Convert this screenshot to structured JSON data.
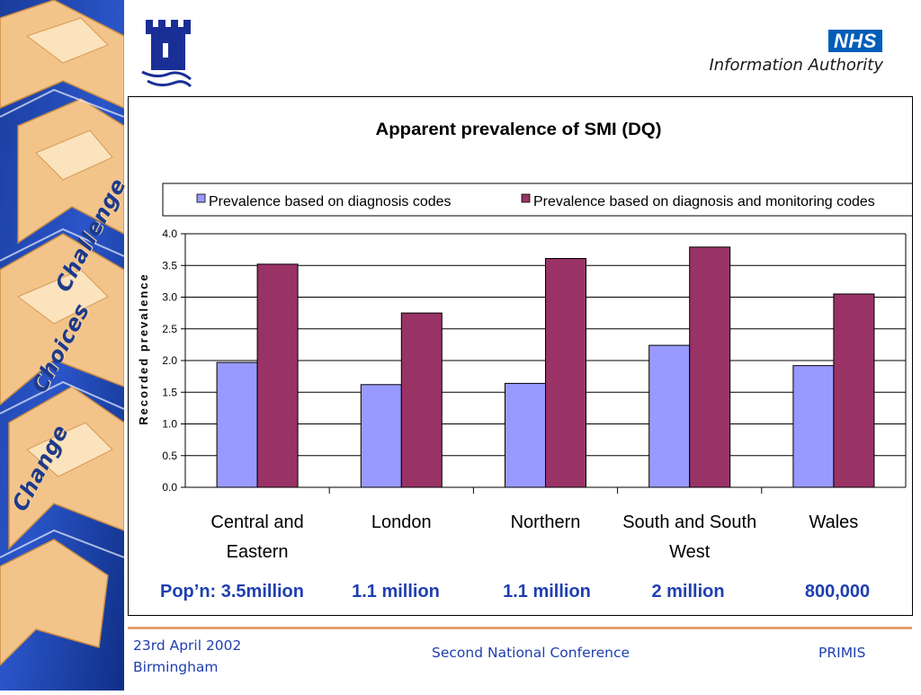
{
  "header": {
    "nhs_badge": "NHS",
    "org_name": "Information Authority"
  },
  "sidebar": {
    "words": [
      "Challenge",
      "Choices",
      "Change"
    ]
  },
  "chart_data": {
    "type": "bar",
    "title": "Apparent prevalence of SMI (DQ)",
    "ylabel": "Recorded prevalence",
    "xlabel": "",
    "categories": [
      [
        "Central and",
        "Eastern"
      ],
      [
        "London"
      ],
      [
        "Northern"
      ],
      [
        "South and South",
        "West"
      ],
      [
        "Wales"
      ]
    ],
    "series": [
      {
        "name": "Prevalence based on diagnosis codes",
        "color": "#9999ff",
        "values": [
          1.97,
          1.62,
          1.64,
          2.24,
          1.92
        ]
      },
      {
        "name": "Prevalence based on diagnosis and monitoring codes",
        "color": "#993366",
        "values": [
          3.52,
          2.75,
          3.61,
          3.79,
          3.05
        ]
      }
    ],
    "ylim": [
      0,
      4
    ],
    "yticks": [
      "0.0",
      "0.5",
      "1.0",
      "1.5",
      "2.0",
      "2.5",
      "3.0",
      "3.5",
      "4.0"
    ],
    "grid": true,
    "legend": "top",
    "population_labels": [
      "Pop’n: 3.5million",
      "1.1 million",
      "1.1 million",
      "2 million",
      "800,000"
    ]
  },
  "footer": {
    "date": "23rd April 2002",
    "city": "Birmingham",
    "conference": "Second National Conference",
    "brand": "PRIMIS"
  }
}
